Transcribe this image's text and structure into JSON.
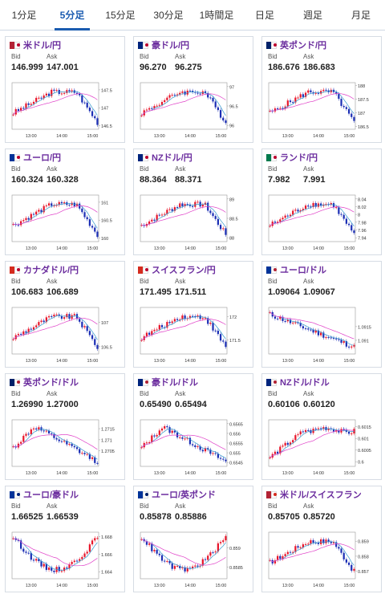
{
  "tabs": [
    "1分足",
    "5分足",
    "15分足",
    "30分足",
    "1時間足",
    "日足",
    "週足",
    "月足"
  ],
  "active_tab": 1,
  "common": {
    "bid_label": "Bid",
    "ask_label": "Ask",
    "x_ticks": [
      "13:00",
      "14:00",
      "15:00"
    ]
  },
  "colors": {
    "up": "#e8162b",
    "down": "#1c2fb5",
    "ma_short": "#3399cc",
    "ma_long": "#e040c8",
    "pair_text": "#6b2d9e",
    "active_tab": "#1a5bb0"
  },
  "cards": [
    {
      "pair": "米ドル/円",
      "flag": [
        "#b22234",
        "#bc002d"
      ],
      "bid": "146.999",
      "ask": "147.001",
      "y_ticks": [
        "147.5",
        "147",
        "146.5"
      ],
      "ylim": [
        146.4,
        147.7
      ],
      "shape": "up_late_drop"
    },
    {
      "pair": "豪ドル/円",
      "flag": [
        "#00247d",
        "#bc002d"
      ],
      "bid": "96.270",
      "ask": "96.275",
      "y_ticks": [
        "97",
        "96.5",
        "96"
      ],
      "ylim": [
        95.9,
        97.1
      ],
      "shape": "up_late_drop"
    },
    {
      "pair": "英ポンド/円",
      "flag": [
        "#012169",
        "#bc002d"
      ],
      "bid": "186.676",
      "ask": "186.683",
      "y_ticks": [
        "188",
        "187.5",
        "187",
        "186.5"
      ],
      "ylim": [
        186.4,
        188.1
      ],
      "shape": "up_late_drop"
    },
    {
      "pair": "ユーロ/円",
      "flag": [
        "#003399",
        "#bc002d"
      ],
      "bid": "160.324",
      "ask": "160.328",
      "y_ticks": [
        "161",
        "160.5",
        "160"
      ],
      "ylim": [
        159.9,
        161.2
      ],
      "shape": "up_late_drop"
    },
    {
      "pair": "NZドル/円",
      "flag": [
        "#00247d",
        "#bc002d"
      ],
      "bid": "88.364",
      "ask": "88.371",
      "y_ticks": [
        "89",
        "88.5",
        "88"
      ],
      "ylim": [
        87.9,
        89.1
      ],
      "shape": "up_late_drop"
    },
    {
      "pair": "ランド/円",
      "flag": [
        "#007a4d",
        "#bc002d"
      ],
      "bid": "7.982",
      "ask": "7.991",
      "y_ticks": [
        "8.04",
        "8.02",
        "8",
        "7.98",
        "7.96",
        "7.94"
      ],
      "ylim": [
        7.93,
        8.05
      ],
      "shape": "up_late_drop"
    },
    {
      "pair": "カナダドル/円",
      "flag": [
        "#d52b1e",
        "#bc002d"
      ],
      "bid": "106.683",
      "ask": "106.689",
      "y_ticks": [
        "107",
        "106.5"
      ],
      "ylim": [
        106.35,
        107.3
      ],
      "shape": "up_late_drop"
    },
    {
      "pair": "スイスフラン/円",
      "flag": [
        "#d52b1e",
        "#bc002d"
      ],
      "bid": "171.495",
      "ask": "171.511",
      "y_ticks": [
        "172",
        "171.5"
      ],
      "ylim": [
        171.2,
        172.2
      ],
      "shape": "up_late_drop"
    },
    {
      "pair": "ユーロ/ドル",
      "flag": [
        "#003399",
        "#b22234"
      ],
      "bid": "1.09064",
      "ask": "1.09067",
      "y_ticks": [
        "1.0915",
        "1.091"
      ],
      "ylim": [
        1.0905,
        1.0922
      ],
      "shape": "down"
    },
    {
      "pair": "英ポンド/ドル",
      "flag": [
        "#012169",
        "#b22234"
      ],
      "bid": "1.26990",
      "ask": "1.27000",
      "y_ticks": [
        "1.2715",
        "1.271",
        "1.2705"
      ],
      "ylim": [
        1.2698,
        1.2719
      ],
      "shape": "peak_then_down"
    },
    {
      "pair": "豪ドル/ドル",
      "flag": [
        "#00247d",
        "#b22234"
      ],
      "bid": "0.65490",
      "ask": "0.65494",
      "y_ticks": [
        "0.6565",
        "0.656",
        "0.6555",
        "0.655",
        "0.6545"
      ],
      "ylim": [
        0.6543,
        0.6567
      ],
      "shape": "peak_then_down"
    },
    {
      "pair": "NZドル/ドル",
      "flag": [
        "#00247d",
        "#b22234"
      ],
      "bid": "0.60106",
      "ask": "0.60120",
      "y_ticks": [
        "0.6015",
        "0.601",
        "0.6005",
        "0.6"
      ],
      "ylim": [
        0.5998,
        0.6018
      ],
      "shape": "up_flat"
    },
    {
      "pair": "ユーロ/豪ドル",
      "flag": [
        "#003399",
        "#00247d"
      ],
      "bid": "1.66525",
      "ask": "1.66539",
      "y_ticks": [
        "1.668",
        "1.666",
        "1.664"
      ],
      "ylim": [
        1.6632,
        1.6685
      ],
      "shape": "valley"
    },
    {
      "pair": "ユーロ/英ポンド",
      "flag": [
        "#003399",
        "#012169"
      ],
      "bid": "0.85878",
      "ask": "0.85886",
      "y_ticks": [
        "0.859",
        "0.8585"
      ],
      "ylim": [
        0.8582,
        0.8594
      ],
      "shape": "valley"
    },
    {
      "pair": "米ドル/スイスフラン",
      "flag": [
        "#b22234",
        "#d52b1e"
      ],
      "bid": "0.85705",
      "ask": "0.85720",
      "y_ticks": [
        "0.859",
        "0.858",
        "0.857"
      ],
      "ylim": [
        0.8565,
        0.8596
      ],
      "shape": "up_late_drop"
    }
  ]
}
